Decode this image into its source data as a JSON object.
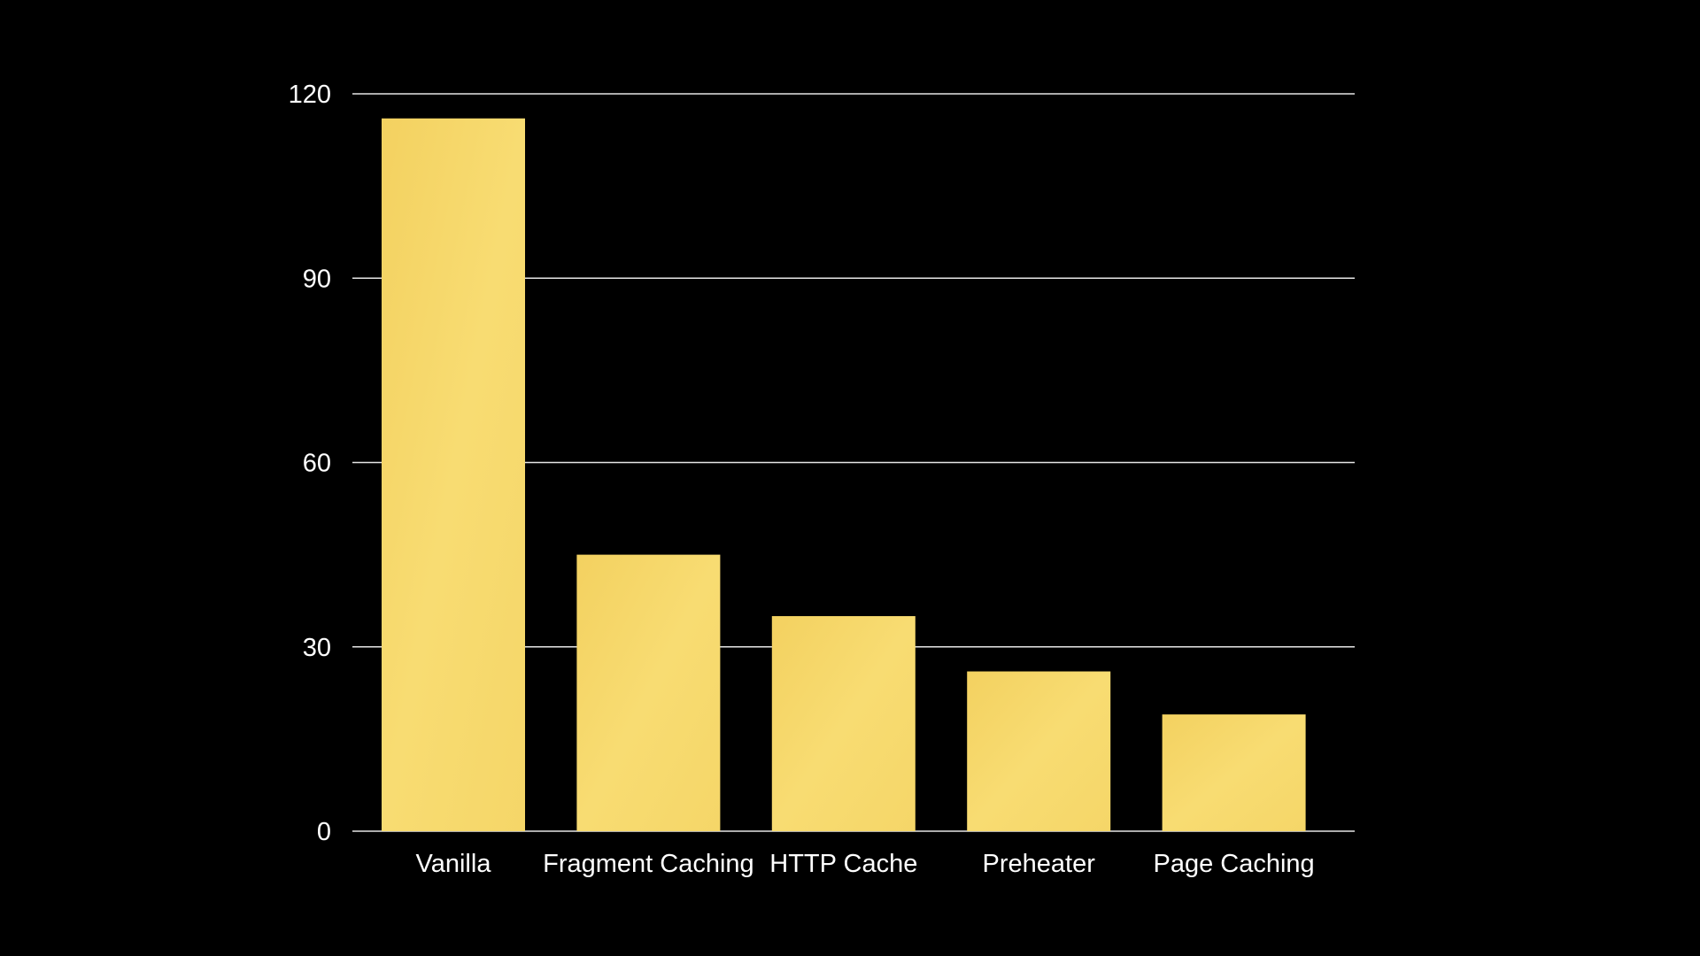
{
  "chart_data": {
    "type": "bar",
    "title": "",
    "xlabel": "",
    "ylabel": "",
    "categories": [
      "Vanilla",
      "Fragment Caching",
      "HTTP Cache",
      "Preheater",
      "Page Caching"
    ],
    "values": [
      116,
      45,
      35,
      26,
      19
    ],
    "ylim": [
      0,
      120
    ],
    "yticks": [
      0,
      30,
      60,
      90,
      120
    ],
    "ytick_labels": [
      "0",
      "30",
      "60",
      "90",
      "120"
    ],
    "grid": true,
    "legend": "none",
    "colors": {
      "background": "#000000",
      "bar": "#F7D96B",
      "bar_edge": "#EFCB55",
      "text": "#FFFFFF",
      "gridline": "#E6E6E6"
    }
  }
}
